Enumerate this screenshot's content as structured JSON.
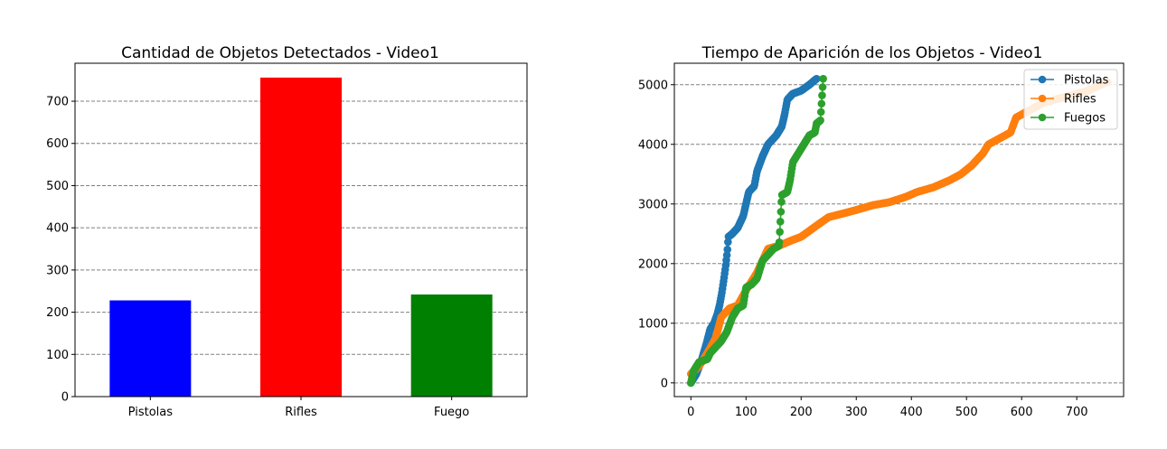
{
  "chart_data": [
    {
      "type": "bar",
      "title": "Cantidad de Objetos Detectados - Video1",
      "categories": [
        "Pistolas",
        "Rifles",
        "Fuego"
      ],
      "values": [
        228,
        756,
        242
      ],
      "colors": [
        "#0000ff",
        "#ff0000",
        "#008000"
      ],
      "ylim": [
        0,
        790
      ],
      "yticks": [
        0,
        100,
        200,
        300,
        400,
        500,
        600,
        700
      ],
      "grid": "y-dashed",
      "xlabel": "",
      "ylabel": ""
    },
    {
      "type": "line",
      "title": "Tiempo de Aparición de los Objetos - Video1",
      "xlim": [
        -30,
        785
      ],
      "ylim": [
        -230,
        5360
      ],
      "xticks": [
        0,
        100,
        200,
        300,
        400,
        500,
        600,
        700
      ],
      "yticks": [
        0,
        1000,
        2000,
        3000,
        4000,
        5000
      ],
      "grid": "y-dashed",
      "legend": "top-right",
      "xlabel": "",
      "ylabel": "",
      "series": [
        {
          "name": "Pistolas",
          "color": "#1f77b4",
          "count": 228,
          "points": [
            [
              0,
              0
            ],
            [
              10,
              150
            ],
            [
              20,
              400
            ],
            [
              28,
              650
            ],
            [
              35,
              900
            ],
            [
              42,
              1000
            ],
            [
              48,
              1150
            ],
            [
              52,
              1300
            ],
            [
              56,
              1500
            ],
            [
              60,
              1750
            ],
            [
              63,
              1950
            ],
            [
              66,
              2200
            ],
            [
              68,
              2450
            ],
            [
              75,
              2500
            ],
            [
              85,
              2600
            ],
            [
              95,
              2800
            ],
            [
              100,
              3000
            ],
            [
              105,
              3200
            ],
            [
              115,
              3300
            ],
            [
              120,
              3550
            ],
            [
              130,
              3800
            ],
            [
              140,
              4000
            ],
            [
              155,
              4150
            ],
            [
              165,
              4300
            ],
            [
              170,
              4500
            ],
            [
              175,
              4750
            ],
            [
              185,
              4850
            ],
            [
              200,
              4900
            ],
            [
              215,
              5000
            ],
            [
              228,
              5100
            ]
          ]
        },
        {
          "name": "Rifles",
          "color": "#ff7f0e",
          "count": 756,
          "points": [
            [
              0,
              150
            ],
            [
              15,
              280
            ],
            [
              30,
              500
            ],
            [
              45,
              750
            ],
            [
              55,
              1100
            ],
            [
              70,
              1250
            ],
            [
              85,
              1300
            ],
            [
              100,
              1550
            ],
            [
              110,
              1700
            ],
            [
              120,
              1850
            ],
            [
              130,
              2050
            ],
            [
              140,
              2250
            ],
            [
              160,
              2300
            ],
            [
              180,
              2380
            ],
            [
              200,
              2450
            ],
            [
              215,
              2550
            ],
            [
              230,
              2650
            ],
            [
              250,
              2780
            ],
            [
              280,
              2850
            ],
            [
              300,
              2900
            ],
            [
              330,
              2980
            ],
            [
              360,
              3030
            ],
            [
              390,
              3120
            ],
            [
              410,
              3200
            ],
            [
              440,
              3280
            ],
            [
              470,
              3400
            ],
            [
              490,
              3500
            ],
            [
              510,
              3650
            ],
            [
              530,
              3850
            ],
            [
              540,
              4000
            ],
            [
              560,
              4100
            ],
            [
              580,
              4200
            ],
            [
              590,
              4450
            ],
            [
              610,
              4550
            ],
            [
              640,
              4700
            ],
            [
              680,
              4800
            ],
            [
              720,
              4900
            ],
            [
              756,
              5050
            ]
          ]
        },
        {
          "name": "Fuegos",
          "color": "#2ca02c",
          "count": 242,
          "points": [
            [
              0,
              0
            ],
            [
              5,
              200
            ],
            [
              15,
              350
            ],
            [
              30,
              400
            ],
            [
              35,
              500
            ],
            [
              45,
              600
            ],
            [
              55,
              700
            ],
            [
              65,
              850
            ],
            [
              75,
              1100
            ],
            [
              85,
              1250
            ],
            [
              95,
              1300
            ],
            [
              100,
              1600
            ],
            [
              110,
              1650
            ],
            [
              120,
              1750
            ],
            [
              130,
              2050
            ],
            [
              140,
              2150
            ],
            [
              150,
              2250
            ],
            [
              160,
              2300
            ],
            [
              162,
              2650
            ],
            [
              165,
              3150
            ],
            [
              175,
              3200
            ],
            [
              180,
              3400
            ],
            [
              185,
              3700
            ],
            [
              195,
              3850
            ],
            [
              205,
              4000
            ],
            [
              215,
              4150
            ],
            [
              225,
              4200
            ],
            [
              228,
              4350
            ],
            [
              235,
              4400
            ],
            [
              240,
              5100
            ]
          ]
        }
      ]
    }
  ]
}
